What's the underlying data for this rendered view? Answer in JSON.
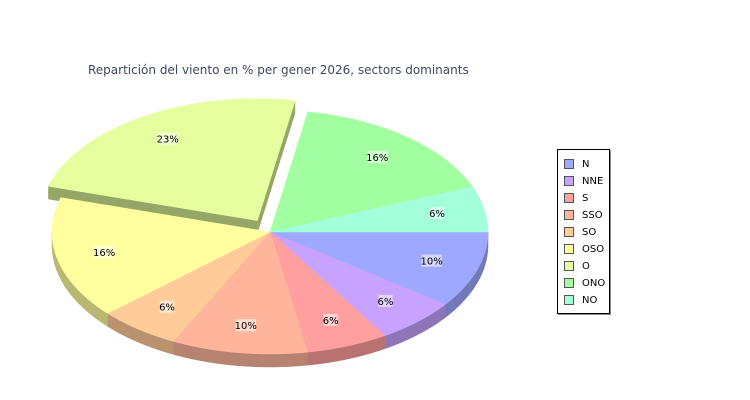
{
  "chart_data": {
    "type": "pie",
    "title": "Repartición del viento en % per gener 2026, sectors dominants",
    "categories": [
      "N",
      "NNE",
      "S",
      "SSO",
      "SO",
      "OSO",
      "O",
      "ONO",
      "NO"
    ],
    "values": [
      10,
      6,
      6,
      10,
      6,
      16,
      23,
      16,
      6
    ],
    "value_labels": [
      "10%",
      "6%",
      "6%",
      "10%",
      "6%",
      "16%",
      "23%",
      "16%",
      "6%"
    ],
    "colors": [
      "#9fa8ff",
      "#c7a2ff",
      "#ff9f9f",
      "#ffb59c",
      "#ffcc99",
      "#ffff9f",
      "#e5ff9f",
      "#a2ff9f",
      "#a2ffd9"
    ],
    "exploded": [
      "O"
    ],
    "legend_position": "right",
    "style": "3d"
  }
}
